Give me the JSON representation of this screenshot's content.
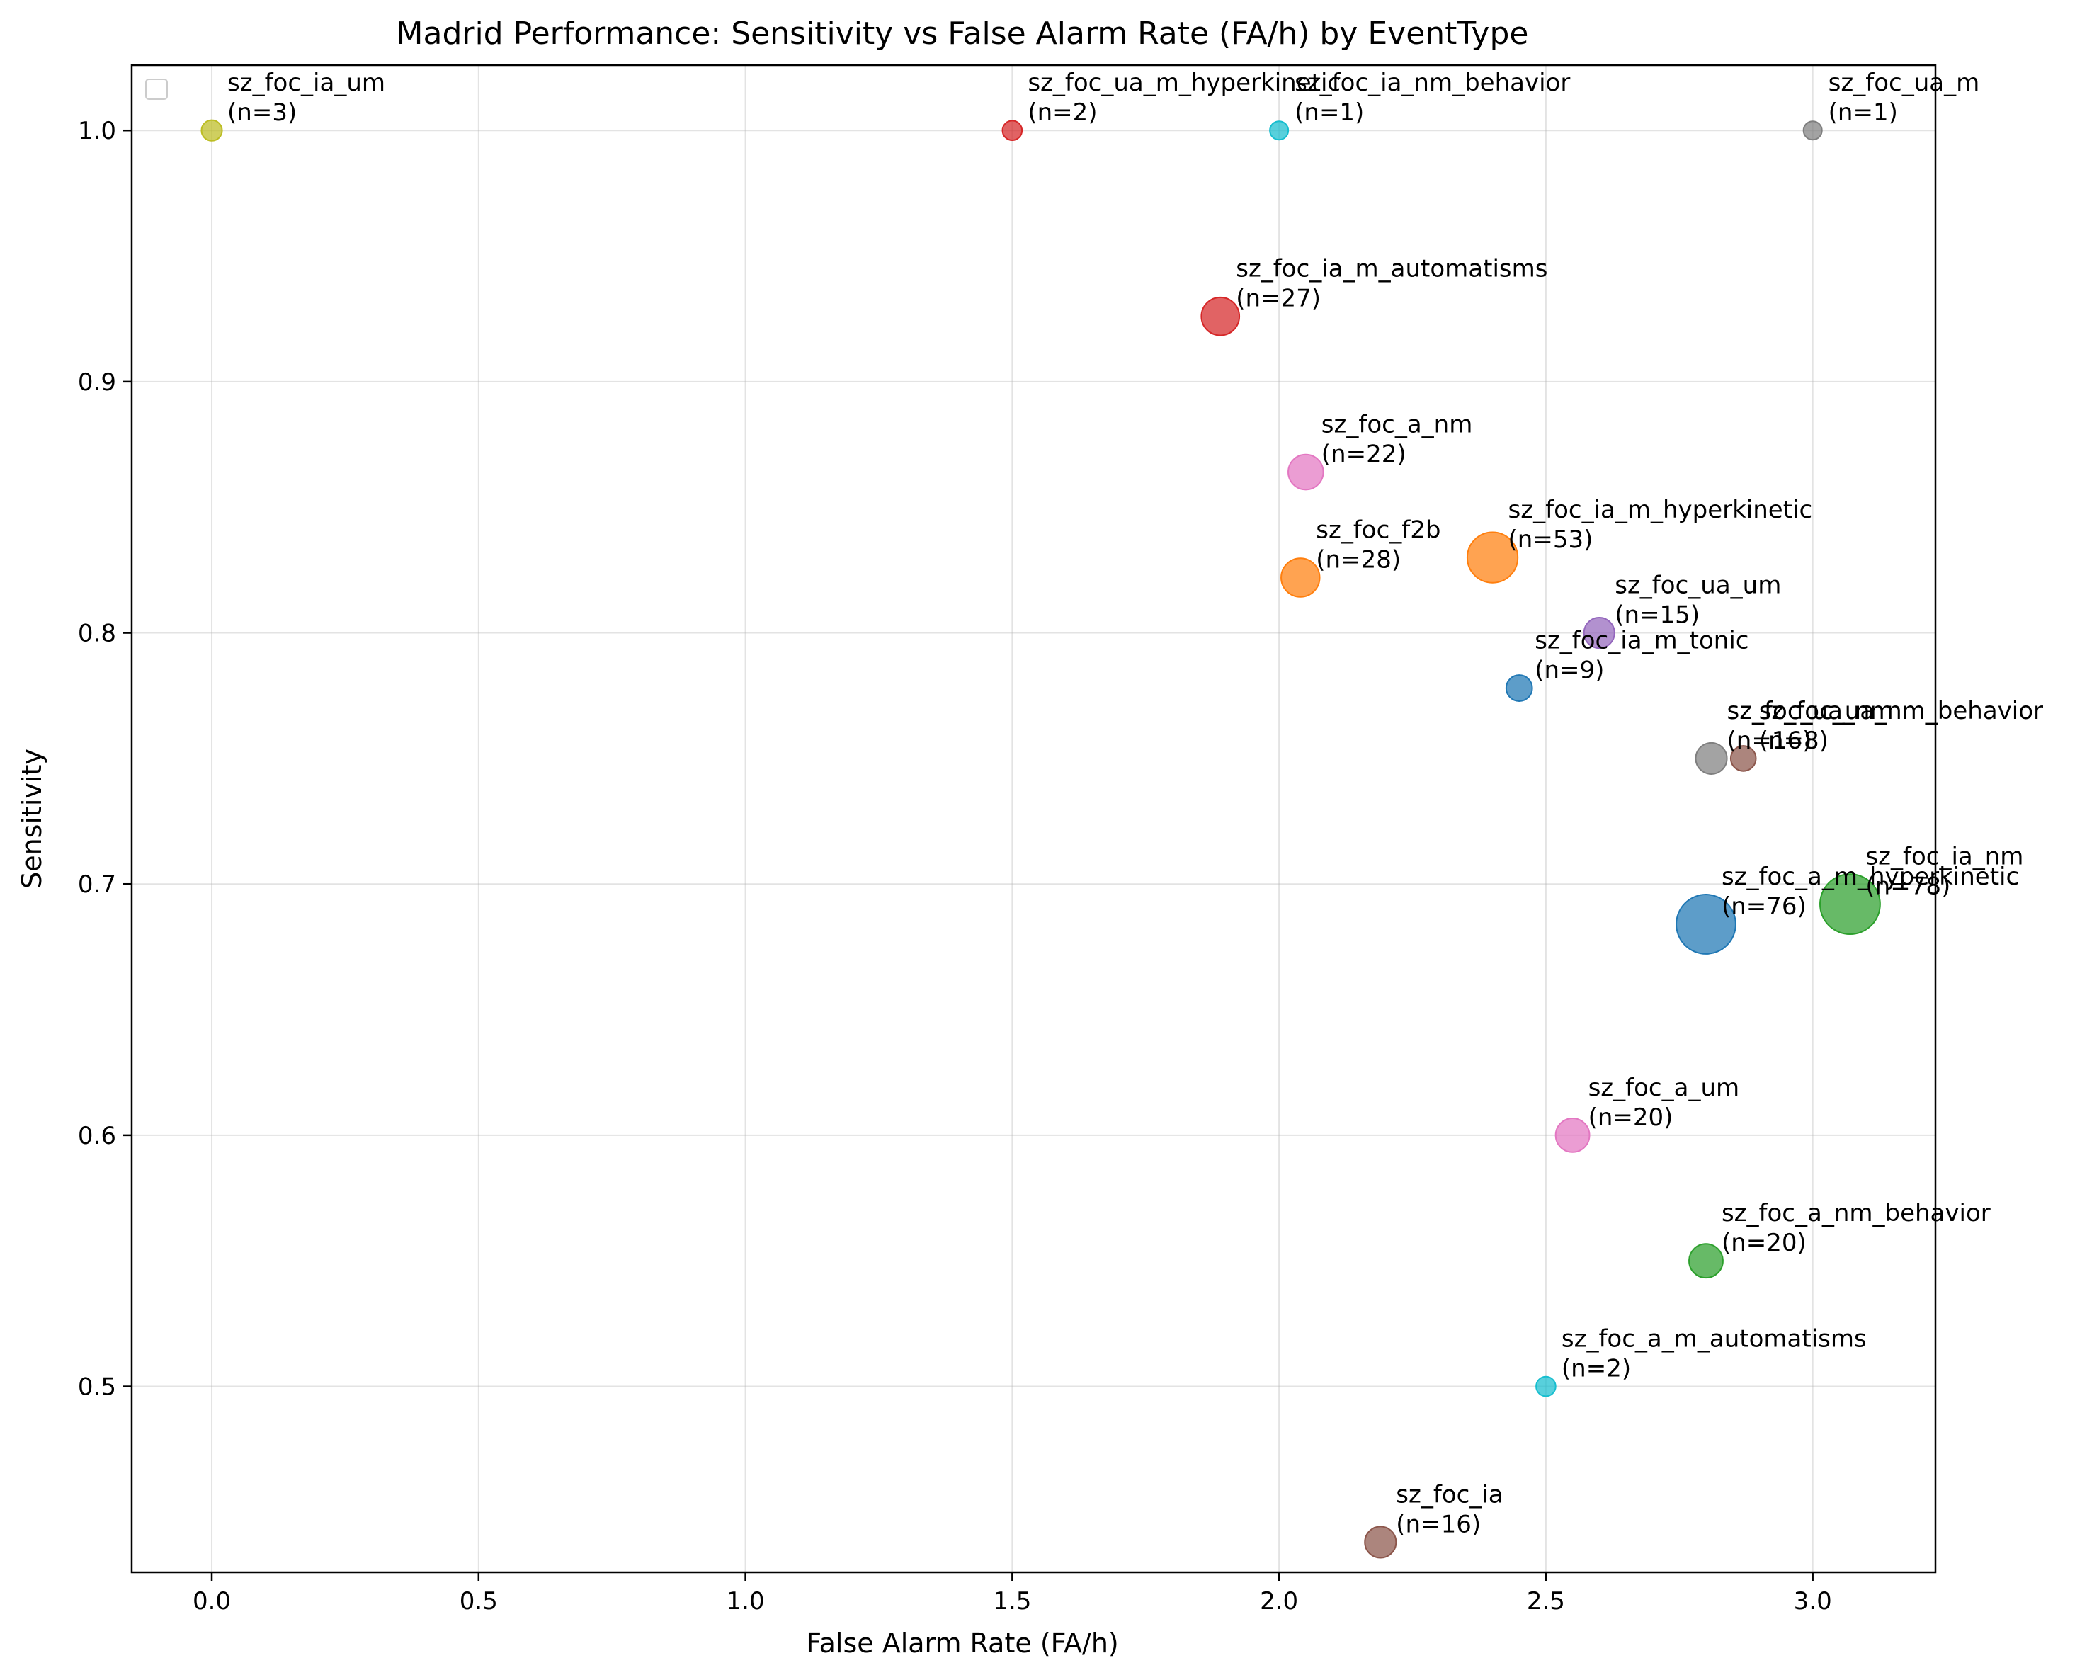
{
  "chart_data": {
    "type": "scatter",
    "title": "Madrid Performance: Sensitivity vs False Alarm Rate (FA/h) by EventType",
    "xlabel": "False Alarm Rate (FA/h)",
    "ylabel": "Sensitivity",
    "xlim": [
      -0.15,
      3.23
    ],
    "ylim": [
      0.426,
      1.026
    ],
    "xticks": [
      0.0,
      0.5,
      1.0,
      1.5,
      2.0,
      2.5,
      3.0
    ],
    "xtick_labels": [
      "0.0",
      "0.5",
      "1.0",
      "1.5",
      "2.0",
      "2.5",
      "3.0"
    ],
    "yticks": [
      0.5,
      0.6,
      0.7,
      0.8,
      0.9,
      1.0
    ],
    "ytick_labels": [
      "0.5",
      "0.6",
      "0.7",
      "0.8",
      "0.9",
      "1.0"
    ],
    "grid": true,
    "legend": "upper-left (empty)",
    "points": [
      {
        "label": "sz_foc_ia_um",
        "n_text": "(n=3)",
        "n": 3,
        "x": 0.0,
        "y": 1.0,
        "color": "#bcbd22"
      },
      {
        "label": "sz_foc_ua_m_hyperkinetic",
        "n_text": "(n=2)",
        "n": 2,
        "x": 1.5,
        "y": 1.0,
        "color": "#d62728"
      },
      {
        "label": "sz_foc_ia_nm_behavior",
        "n_text": "(n=1)",
        "n": 1,
        "x": 2.0,
        "y": 1.0,
        "color": "#17becf"
      },
      {
        "label": "sz_foc_ua_m",
        "n_text": "(n=1)",
        "n": 1,
        "x": 3.0,
        "y": 1.0,
        "color": "#7f7f7f"
      },
      {
        "label": "sz_foc_ia_m_automatisms",
        "n_text": "(n=27)",
        "n": 27,
        "x": 1.89,
        "y": 0.926,
        "color": "#d62728"
      },
      {
        "label": "sz_foc_a_nm",
        "n_text": "(n=22)",
        "n": 22,
        "x": 2.05,
        "y": 0.864,
        "color": "#e377c2"
      },
      {
        "label": "sz_foc_f2b",
        "n_text": "(n=28)",
        "n": 28,
        "x": 2.04,
        "y": 0.822,
        "color": "#ff7f0e"
      },
      {
        "label": "sz_foc_ia_m_hyperkinetic",
        "n_text": "(n=53)",
        "n": 53,
        "x": 2.4,
        "y": 0.83,
        "color": "#ff7f0e"
      },
      {
        "label": "sz_foc_ua_um",
        "n_text": "(n=15)",
        "n": 15,
        "x": 2.6,
        "y": 0.8,
        "color": "#9467bd"
      },
      {
        "label": "sz_foc_ia_m_tonic",
        "n_text": "(n=9)",
        "n": 9,
        "x": 2.45,
        "y": 0.778,
        "color": "#1f77b4"
      },
      {
        "label": "sz_foc_ua_nm",
        "n_text": "(n=16)",
        "n": 16,
        "x": 2.81,
        "y": 0.75,
        "color": "#7f7f7f"
      },
      {
        "label": "sz_foc_ua_nm_behavior",
        "n_text": "(n=8)",
        "n": 8,
        "x": 2.87,
        "y": 0.75,
        "color": "#8c564b"
      },
      {
        "label": "sz_foc_a_m_hyperkinetic",
        "n_text": "(n=76)",
        "n": 76,
        "x": 2.8,
        "y": 0.684,
        "color": "#1f77b4"
      },
      {
        "label": "sz_foc_ia_nm",
        "n_text": "(n=78)",
        "n": 78,
        "x": 3.07,
        "y": 0.692,
        "color": "#2ca02c"
      },
      {
        "label": "sz_foc_a_um",
        "n_text": "(n=20)",
        "n": 20,
        "x": 2.55,
        "y": 0.6,
        "color": "#e377c2"
      },
      {
        "label": "sz_foc_a_nm_behavior",
        "n_text": "(n=20)",
        "n": 20,
        "x": 2.8,
        "y": 0.55,
        "color": "#2ca02c"
      },
      {
        "label": "sz_foc_a_m_automatisms",
        "n_text": "(n=2)",
        "n": 2,
        "x": 2.5,
        "y": 0.5,
        "color": "#17becf"
      },
      {
        "label": "sz_foc_ia",
        "n_text": "(n=16)",
        "n": 16,
        "x": 2.19,
        "y": 0.438,
        "color": "#8c564b"
      }
    ]
  }
}
